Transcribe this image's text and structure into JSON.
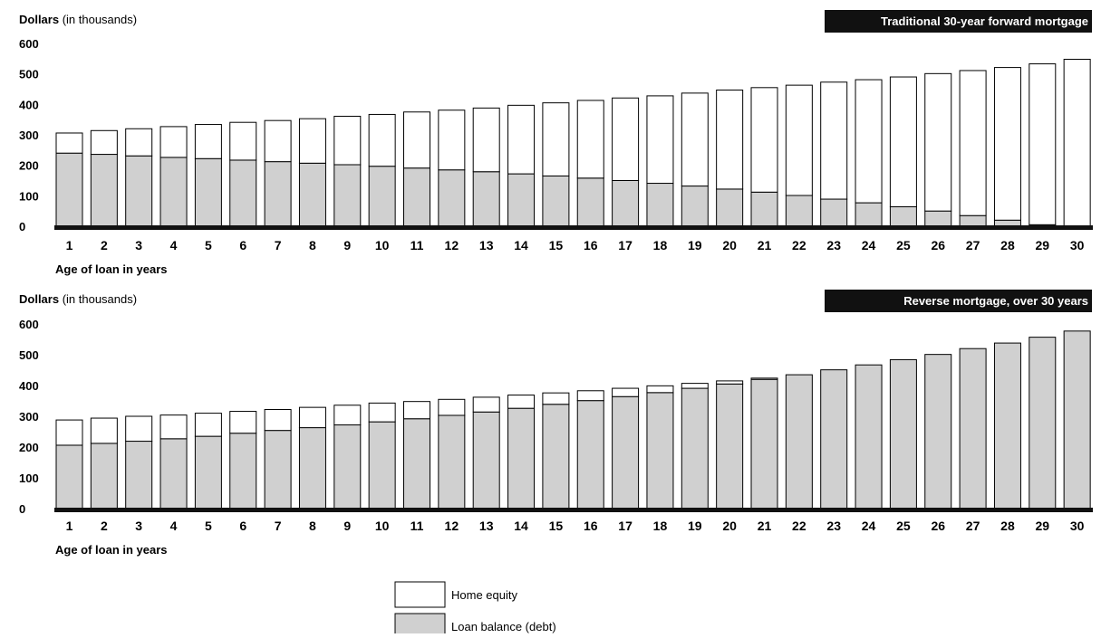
{
  "colors": {
    "equity": "#ffffff",
    "debt": "#d0d0d0",
    "stroke": "#000000",
    "baseline": "#111111",
    "tag_bg": "#111111"
  },
  "legend": [
    {
      "key": "equity",
      "label": "Home equity"
    },
    {
      "key": "debt",
      "label": "Loan balance (debt)"
    }
  ],
  "chart_data": [
    {
      "type": "bar",
      "stacked": true,
      "tag": "Traditional 30-year forward mortgage",
      "ylabel_bold": "Dollars",
      "ylabel_rest": " (in thousands)",
      "xlabel": "Age of loan in years",
      "ylim": [
        0,
        600
      ],
      "yticks": [
        0,
        100,
        200,
        300,
        400,
        500,
        600
      ],
      "categories": [
        "1",
        "2",
        "3",
        "4",
        "5",
        "6",
        "7",
        "8",
        "9",
        "10",
        "11",
        "12",
        "13",
        "14",
        "15",
        "16",
        "17",
        "18",
        "19",
        "20",
        "21",
        "22",
        "23",
        "24",
        "25",
        "26",
        "27",
        "28",
        "29",
        "30"
      ],
      "series": [
        {
          "name": "Loan balance (debt)",
          "key": "debt",
          "values": [
            240,
            236,
            231,
            226,
            222,
            217,
            212,
            207,
            202,
            197,
            191,
            185,
            179,
            172,
            165,
            158,
            150,
            141,
            132,
            122,
            112,
            101,
            89,
            77,
            64,
            50,
            35,
            20,
            5,
            0
          ]
        },
        {
          "name": "Home equity",
          "key": "equity",
          "values": [
            66,
            78,
            89,
            101,
            112,
            124,
            135,
            146,
            159,
            170,
            184,
            196,
            209,
            225,
            240,
            255,
            271,
            287,
            305,
            325,
            343,
            362,
            384,
            404,
            426,
            451,
            476,
            501,
            528,
            548
          ]
        }
      ],
      "totals": [
        306,
        314,
        320,
        327,
        334,
        341,
        347,
        353,
        361,
        367,
        375,
        381,
        388,
        397,
        405,
        413,
        421,
        428,
        437,
        447,
        455,
        463,
        473,
        481,
        490,
        501,
        511,
        521,
        533,
        548
      ]
    },
    {
      "type": "bar",
      "stacked": true,
      "tag": "Reverse mortgage, over 30 years",
      "ylabel_bold": "Dollars",
      "ylabel_rest": " (in thousands)",
      "xlabel": "Age of loan in years",
      "ylim": [
        0,
        600
      ],
      "yticks": [
        0,
        100,
        200,
        300,
        400,
        500,
        600
      ],
      "categories": [
        "1",
        "2",
        "3",
        "4",
        "5",
        "6",
        "7",
        "8",
        "9",
        "10",
        "11",
        "12",
        "13",
        "14",
        "15",
        "16",
        "17",
        "18",
        "19",
        "20",
        "21",
        "22",
        "23",
        "24",
        "25",
        "26",
        "27",
        "28",
        "29",
        "30"
      ],
      "series": [
        {
          "name": "Loan balance (debt)",
          "key": "debt",
          "values": [
            206,
            212,
            219,
            227,
            235,
            245,
            254,
            263,
            272,
            282,
            292,
            303,
            314,
            326,
            339,
            351,
            364,
            377,
            391,
            405,
            420,
            435,
            451,
            467,
            484,
            501,
            520,
            538,
            557,
            577
          ]
        },
        {
          "name": "Home equity",
          "key": "equity",
          "values": [
            82,
            82,
            81,
            77,
            75,
            71,
            68,
            66,
            64,
            61,
            56,
            52,
            48,
            43,
            37,
            32,
            27,
            22,
            16,
            10,
            4,
            0,
            0,
            0,
            0,
            0,
            0,
            0,
            0,
            0
          ]
        }
      ],
      "totals": [
        288,
        294,
        300,
        304,
        310,
        316,
        322,
        329,
        336,
        343,
        348,
        355,
        362,
        369,
        376,
        383,
        391,
        399,
        407,
        415,
        424,
        435,
        451,
        467,
        484,
        501,
        520,
        538,
        557,
        577
      ]
    }
  ]
}
